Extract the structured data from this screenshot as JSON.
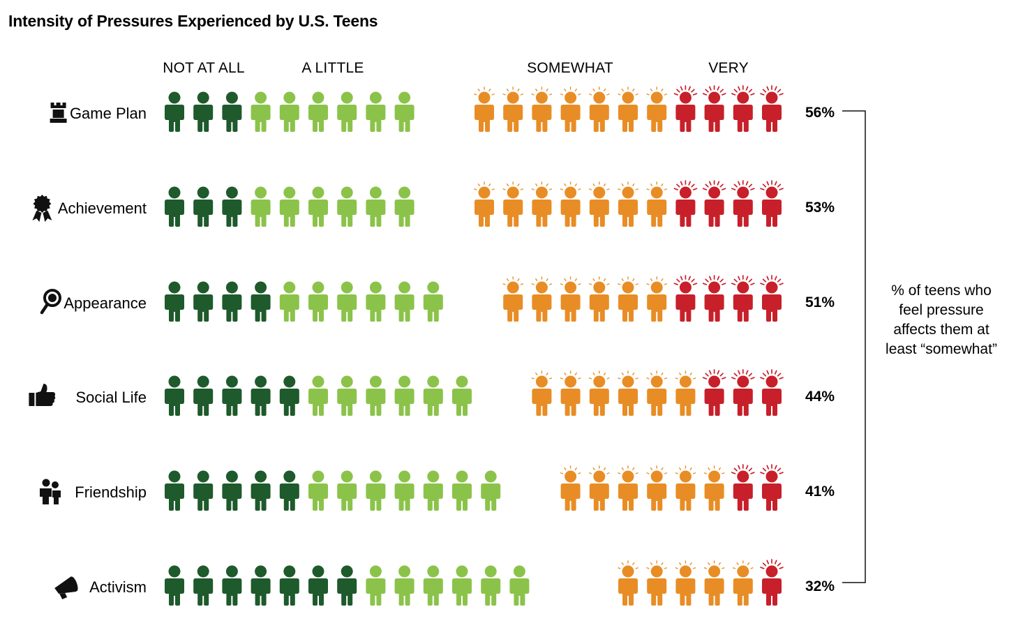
{
  "chart_data": {
    "type": "pictogram",
    "title": "Intensity of Pressures Experienced by U.S. Teens",
    "categories": [
      "NOT AT ALL",
      "A LITTLE",
      "SOMEWHAT",
      "VERY"
    ],
    "colors": {
      "NOT AT ALL": "#1e5a2b",
      "A LITTLE": "#8bc34a",
      "SOMEWHAT": "#e88d25",
      "VERY": "#c7202a"
    },
    "rows": [
      {
        "label": "Game Plan",
        "icon": "rook-icon",
        "counts": [
          3,
          6,
          7,
          4
        ],
        "pct": "56%"
      },
      {
        "label": "Achievement",
        "icon": "award-icon",
        "counts": [
          3,
          6,
          7,
          4
        ],
        "pct": "53%"
      },
      {
        "label": "Appearance",
        "icon": "mirror-icon",
        "counts": [
          4,
          6,
          6,
          4
        ],
        "pct": "51%"
      },
      {
        "label": "Social Life",
        "icon": "thumbs-up-icon",
        "counts": [
          5,
          6,
          6,
          3
        ],
        "pct": "44%"
      },
      {
        "label": "Friendship",
        "icon": "friends-icon",
        "counts": [
          5,
          7,
          6,
          2
        ],
        "pct": "41%"
      },
      {
        "label": "Activism",
        "icon": "megaphone-icon",
        "counts": [
          7,
          6,
          5,
          1
        ],
        "pct": "32%"
      }
    ],
    "bracket_note": [
      "% of teens who",
      "feel pressure",
      "affects them at",
      "least “somewhat”"
    ]
  }
}
